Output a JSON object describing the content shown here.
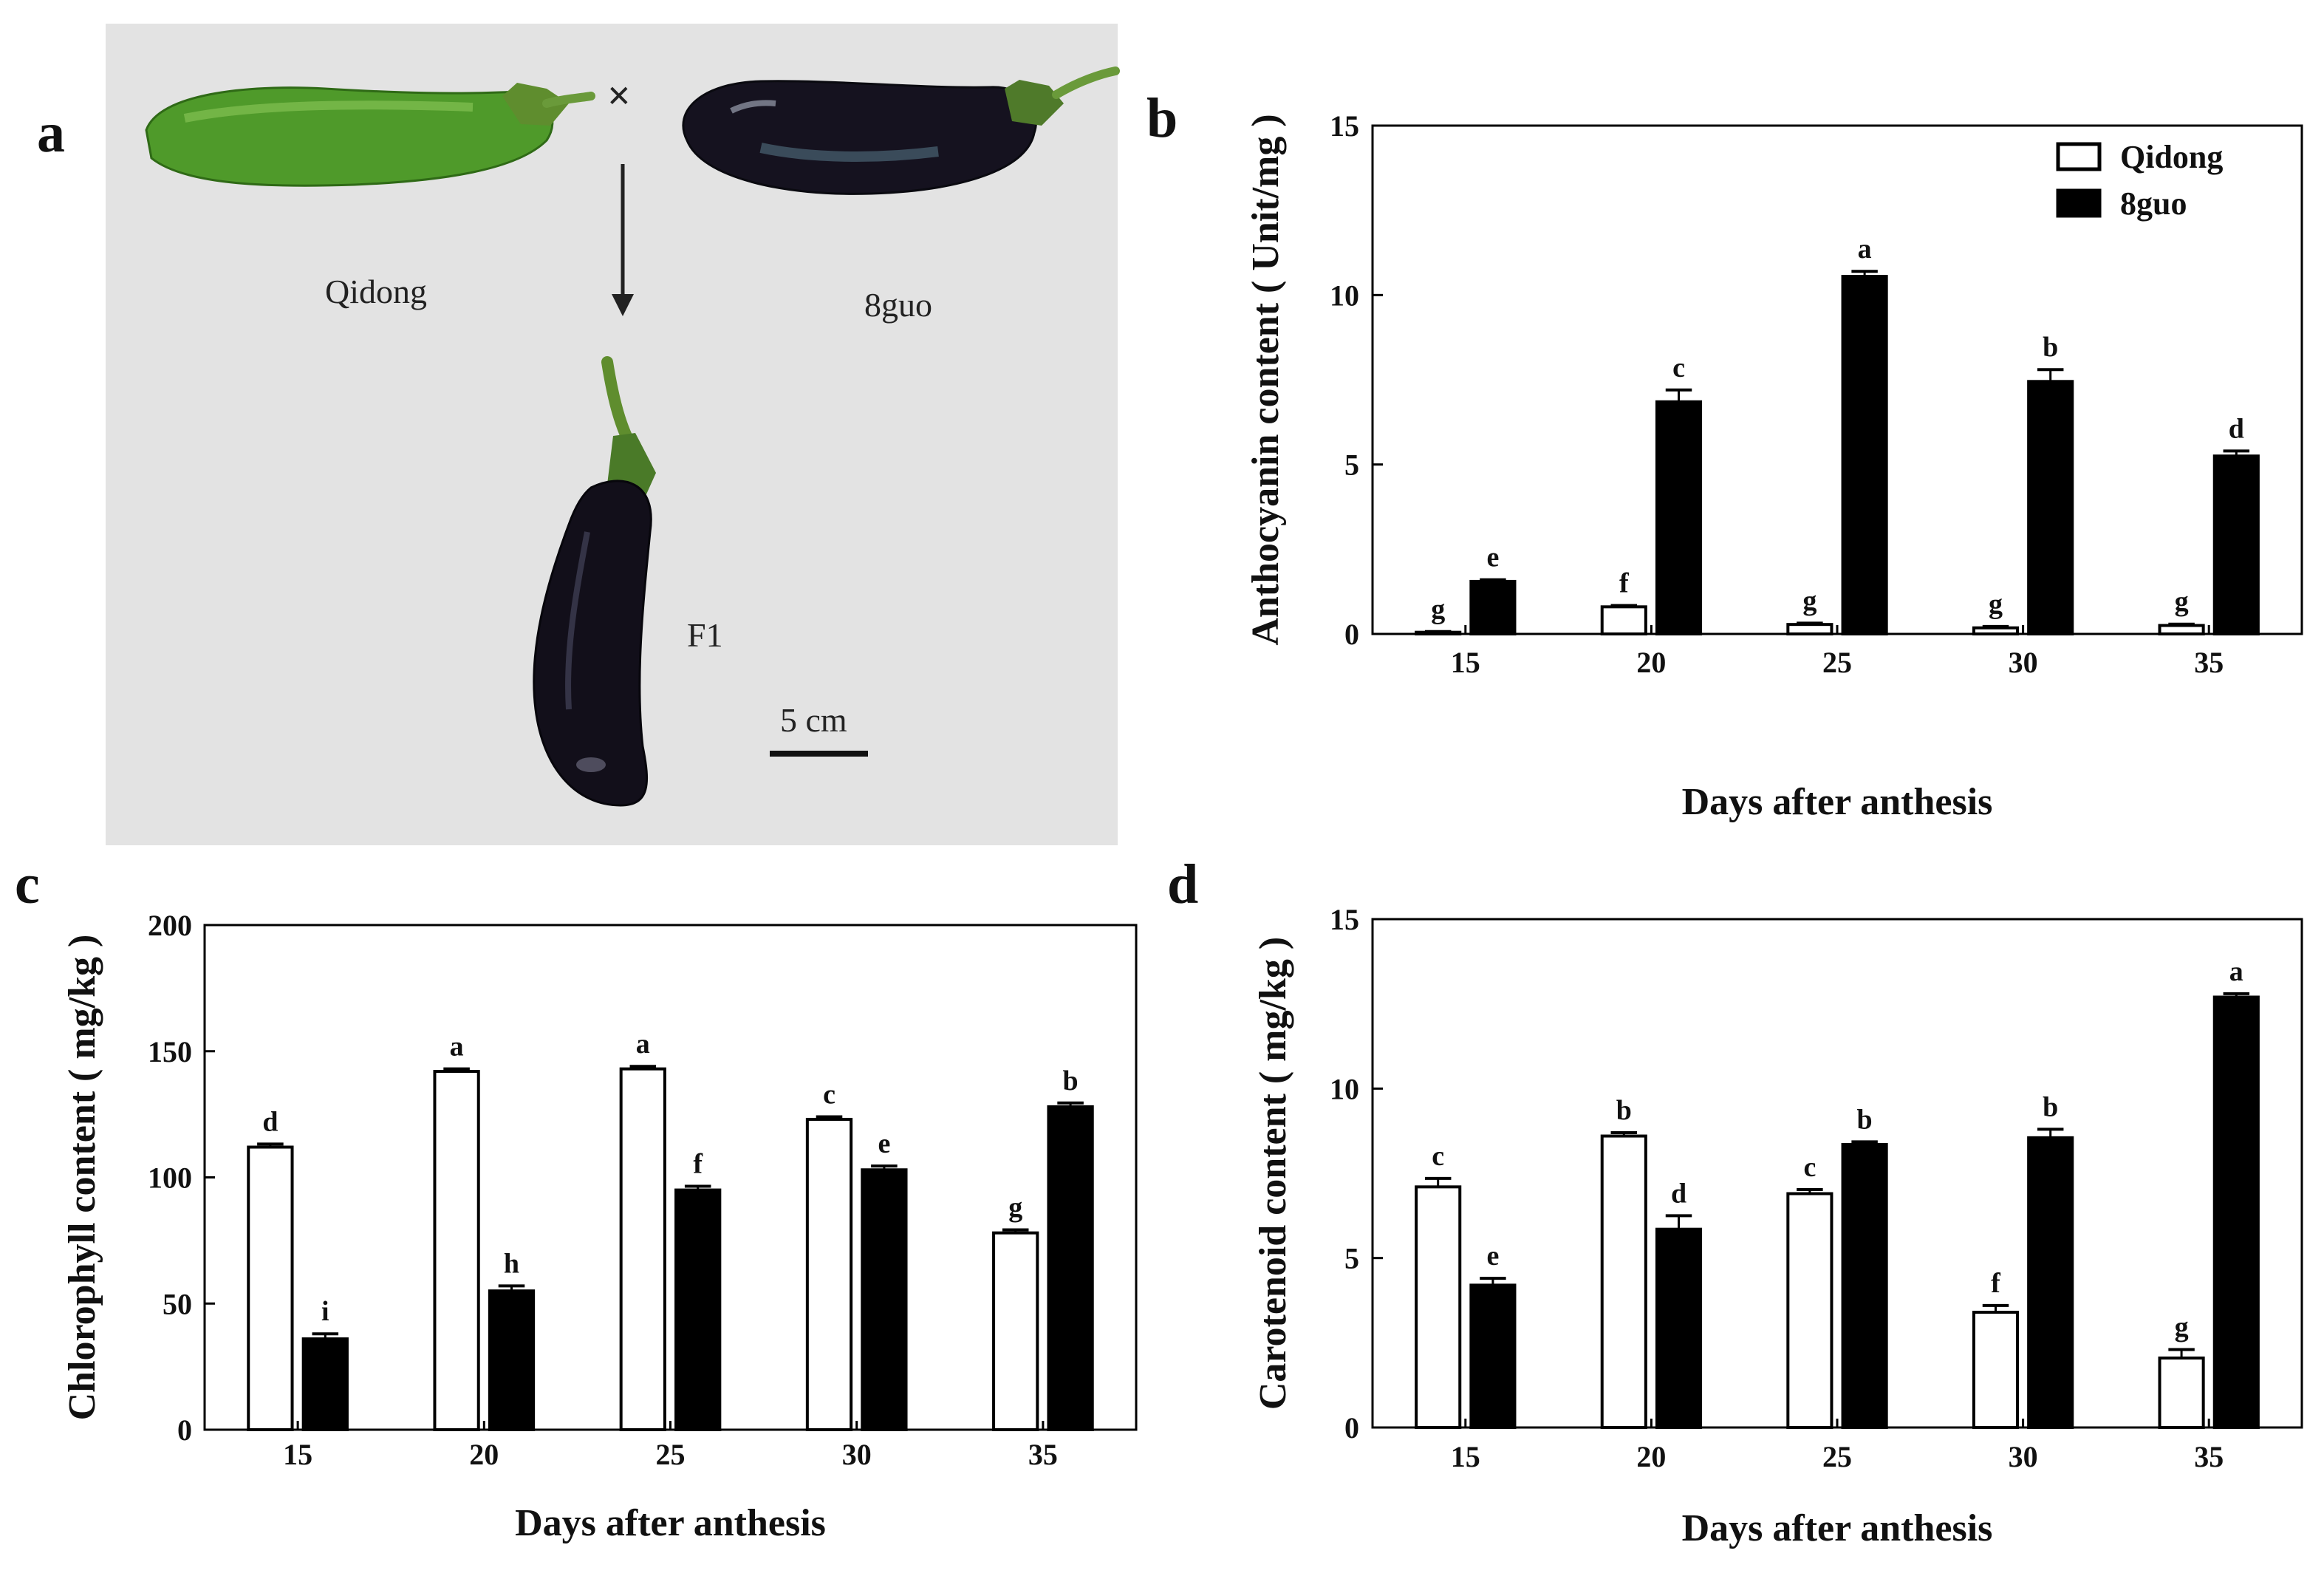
{
  "colors": {
    "series1": "#ffffff",
    "series2": "#000000",
    "photo_bg": "#e3e3e3"
  },
  "photo": {
    "letter": "a",
    "cross_symbol": "×",
    "parent1_label": "Qidong",
    "parent2_label": "8guo",
    "offspring_label": "F1",
    "scale_label": "5 cm"
  },
  "legend": {
    "series1": "Qidong",
    "series2": "8guo"
  },
  "chart_data": [
    {
      "id": "b",
      "type": "bar",
      "letter": "b",
      "title": "",
      "xlabel": "Days after anthesis",
      "ylabel": "Anthocyanin content ( Unit/mg )",
      "categories": [
        "15",
        "20",
        "25",
        "30",
        "35"
      ],
      "ylim": [
        0,
        15
      ],
      "yticks": [
        0,
        5,
        10,
        15
      ],
      "series": [
        {
          "name": "Qidong",
          "values": [
            0.05,
            0.8,
            0.28,
            0.18,
            0.25
          ],
          "errors": [
            0.02,
            0.04,
            0.04,
            0.04,
            0.04
          ],
          "labels": [
            "g",
            "f",
            "g",
            "g",
            "g"
          ]
        },
        {
          "name": "8guo",
          "values": [
            1.55,
            6.85,
            10.55,
            7.45,
            5.25
          ],
          "errors": [
            0.05,
            0.35,
            0.15,
            0.35,
            0.15
          ],
          "labels": [
            "e",
            "c",
            "a",
            "b",
            "d"
          ]
        }
      ]
    },
    {
      "id": "c",
      "type": "bar",
      "letter": "c",
      "title": "",
      "xlabel": "Days after anthesis",
      "ylabel": "Chlorophyll content ( mg/kg )",
      "categories": [
        "15",
        "20",
        "25",
        "30",
        "35"
      ],
      "ylim": [
        0,
        200
      ],
      "yticks": [
        0,
        50,
        100,
        150,
        200
      ],
      "series": [
        {
          "name": "Qidong",
          "values": [
            112,
            142,
            143,
            123,
            78
          ],
          "errors": [
            1.2,
            1.0,
            1.0,
            1.0,
            1.2
          ],
          "labels": [
            "d",
            "a",
            "a",
            "c",
            "g"
          ]
        },
        {
          "name": "8guo",
          "values": [
            36,
            55,
            95,
            103,
            128
          ],
          "errors": [
            2.0,
            2.0,
            1.5,
            1.5,
            1.5
          ],
          "labels": [
            "i",
            "h",
            "f",
            "e",
            "b"
          ]
        }
      ]
    },
    {
      "id": "d",
      "type": "bar",
      "letter": "d",
      "title": "",
      "xlabel": "Days after anthesis",
      "ylabel": "Carotenoid content ( mg/kg )",
      "categories": [
        "15",
        "20",
        "25",
        "30",
        "35"
      ],
      "ylim": [
        0,
        15
      ],
      "yticks": [
        0,
        5,
        10,
        15
      ],
      "series": [
        {
          "name": "Qidong",
          "values": [
            7.1,
            8.6,
            6.9,
            3.4,
            2.05
          ],
          "errors": [
            0.25,
            0.1,
            0.12,
            0.2,
            0.25
          ],
          "labels": [
            "c",
            "b",
            "c",
            "f",
            "g"
          ]
        },
        {
          "name": "8guo",
          "values": [
            4.2,
            5.85,
            8.35,
            8.55,
            12.7
          ],
          "errors": [
            0.2,
            0.4,
            0.08,
            0.25,
            0.1
          ],
          "labels": [
            "e",
            "d",
            "b",
            "b",
            "a"
          ]
        }
      ]
    }
  ]
}
